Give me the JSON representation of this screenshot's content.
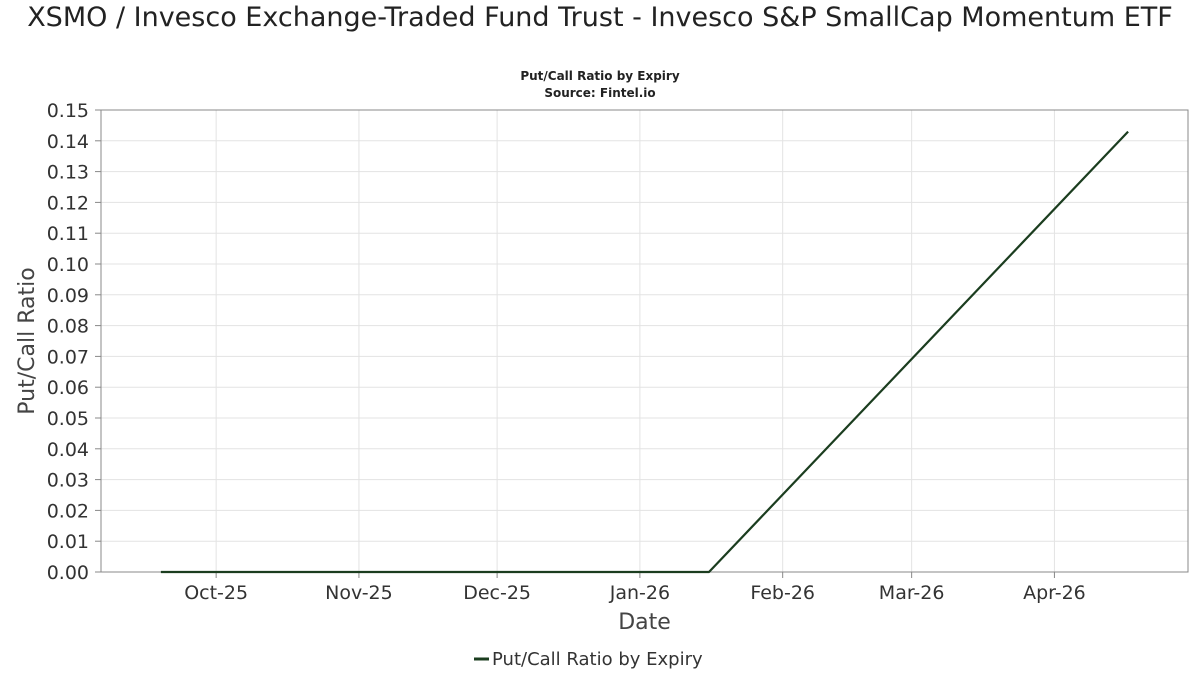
{
  "chart_data": {
    "type": "line",
    "title": "XSMO / Invesco Exchange-Traded Fund Trust - Invesco S&P SmallCap Momentum ETF",
    "subtitle": "Put/Call Ratio by Expiry",
    "source": "Source: Fintel.io",
    "xlabel": "Date",
    "ylabel": "Put/Call Ratio",
    "ylim": [
      0,
      0.15
    ],
    "y_ticks": [
      "0.00",
      "0.01",
      "0.02",
      "0.03",
      "0.04",
      "0.05",
      "0.06",
      "0.07",
      "0.08",
      "0.09",
      "0.10",
      "0.11",
      "0.12",
      "0.13",
      "0.14",
      "0.15"
    ],
    "x_ticks": [
      {
        "label": "Oct-25",
        "date": "2025-10-01"
      },
      {
        "label": "Nov-25",
        "date": "2025-11-01"
      },
      {
        "label": "Dec-25",
        "date": "2025-12-01"
      },
      {
        "label": "Jan-26",
        "date": "2026-01-01"
      },
      {
        "label": "Feb-26",
        "date": "2026-02-01"
      },
      {
        "label": "Mar-26",
        "date": "2026-03-01"
      },
      {
        "label": "Apr-26",
        "date": "2026-04-01"
      }
    ],
    "xlim": [
      "2025-09-06",
      "2026-04-30"
    ],
    "grid": true,
    "legend_position": "bottom-center",
    "series": [
      {
        "name": "Put/Call Ratio by Expiry",
        "color": "#1b3d1f",
        "points": [
          {
            "x": "2025-09-19",
            "y": 0.0
          },
          {
            "x": "2025-10-17",
            "y": 0.0
          },
          {
            "x": "2026-01-16",
            "y": 0.0
          },
          {
            "x": "2026-04-17",
            "y": 0.143
          }
        ]
      }
    ]
  }
}
